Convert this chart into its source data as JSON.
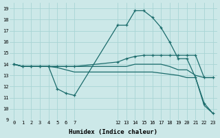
{
  "xlabel": "Humidex (Indice chaleur)",
  "bg_color": "#cce8e8",
  "line_color": "#1a6b6b",
  "grid_color": "#a8d4d4",
  "xlim": [
    -0.5,
    23.5
  ],
  "ylim": [
    9,
    19.5
  ],
  "xticks": [
    0,
    1,
    2,
    3,
    4,
    5,
    6,
    7,
    12,
    13,
    14,
    15,
    16,
    17,
    18,
    19,
    20,
    21,
    22,
    23
  ],
  "yticks": [
    9,
    10,
    11,
    12,
    13,
    14,
    15,
    16,
    17,
    18,
    19
  ],
  "series": [
    {
      "x": [
        0,
        1,
        2,
        3,
        4,
        5,
        6,
        7,
        12,
        13,
        14,
        15,
        16,
        17,
        18,
        19,
        20,
        21,
        22,
        23
      ],
      "y": [
        14,
        13.8,
        13.8,
        13.8,
        13.8,
        11.8,
        11.4,
        11.2,
        17.5,
        17.5,
        18.8,
        18.8,
        18.2,
        17.3,
        16.0,
        14.5,
        14.5,
        12.8,
        10.5,
        9.6
      ],
      "marker": true
    },
    {
      "x": [
        0,
        1,
        2,
        3,
        4,
        5,
        6,
        7,
        12,
        13,
        14,
        15,
        16,
        17,
        18,
        19,
        20,
        21,
        22,
        23
      ],
      "y": [
        14,
        13.8,
        13.8,
        13.8,
        13.8,
        13.8,
        13.8,
        13.8,
        14.2,
        14.5,
        14.7,
        14.8,
        14.8,
        14.8,
        14.8,
        14.8,
        14.8,
        14.8,
        12.8,
        12.8
      ],
      "marker": true
    },
    {
      "x": [
        0,
        1,
        2,
        3,
        4,
        5,
        6,
        7,
        12,
        13,
        14,
        15,
        16,
        17,
        18,
        19,
        20,
        21,
        22,
        23
      ],
      "y": [
        14,
        13.8,
        13.8,
        13.8,
        13.8,
        13.7,
        13.5,
        13.3,
        13.3,
        13.3,
        13.3,
        13.3,
        13.3,
        13.2,
        13.1,
        13.0,
        12.8,
        12.8,
        10.3,
        9.6
      ],
      "marker": false
    },
    {
      "x": [
        0,
        1,
        2,
        3,
        4,
        5,
        6,
        7,
        12,
        13,
        14,
        15,
        16,
        17,
        18,
        19,
        20,
        21,
        22,
        23
      ],
      "y": [
        14,
        13.8,
        13.8,
        13.8,
        13.8,
        13.8,
        13.8,
        13.8,
        13.8,
        13.8,
        14.0,
        14.0,
        14.0,
        14.0,
        13.8,
        13.5,
        13.5,
        13.0,
        12.8,
        12.8
      ],
      "marker": false
    }
  ]
}
